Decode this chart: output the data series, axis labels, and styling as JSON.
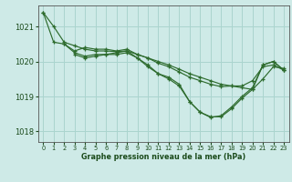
{
  "bg_color": "#ceeae7",
  "grid_color": "#aad4ce",
  "line_color": "#2d6b2d",
  "text_color": "#1a4a1a",
  "xlabel": "Graphe pression niveau de la mer (hPa)",
  "xlim": [
    -0.5,
    23.5
  ],
  "ylim": [
    1017.7,
    1021.6
  ],
  "yticks": [
    1018,
    1019,
    1020,
    1021
  ],
  "xticks": [
    0,
    1,
    2,
    3,
    4,
    5,
    6,
    7,
    8,
    9,
    10,
    11,
    12,
    13,
    14,
    15,
    16,
    17,
    18,
    19,
    20,
    21,
    22,
    23
  ],
  "series": [
    {
      "x": [
        0,
        1,
        2,
        3,
        4,
        5,
        6,
        7,
        8,
        9,
        10,
        11,
        12,
        13,
        14,
        15,
        16,
        17,
        18,
        19,
        20,
        21,
        22,
        23
      ],
      "y": [
        1021.4,
        1021.0,
        1020.55,
        1020.45,
        1020.35,
        1020.3,
        1020.3,
        1020.28,
        1020.3,
        1020.2,
        1020.1,
        1020.0,
        1019.9,
        1019.78,
        1019.65,
        1019.55,
        1019.45,
        1019.35,
        1019.3,
        1019.25,
        1019.2,
        1019.5,
        1019.85,
        1019.8
      ]
    },
    {
      "x": [
        0,
        1,
        2,
        3,
        4,
        5,
        6,
        7,
        8,
        9,
        10,
        11,
        12,
        13,
        14,
        15,
        16,
        17,
        18,
        19,
        20,
        21,
        22,
        23
      ],
      "y": [
        1021.4,
        1020.55,
        1020.5,
        1020.3,
        1020.4,
        1020.35,
        1020.35,
        1020.3,
        1020.35,
        1020.2,
        1020.1,
        1019.95,
        1019.85,
        1019.7,
        1019.55,
        1019.45,
        1019.35,
        1019.28,
        1019.3,
        1019.3,
        1019.45,
        1019.85,
        1019.9,
        1019.75
      ]
    },
    {
      "x": [
        2,
        3,
        4,
        5,
        6,
        7,
        8,
        9,
        10,
        11,
        12,
        13,
        14,
        15,
        16,
        17,
        18,
        19,
        20,
        21,
        22,
        23
      ],
      "y": [
        1020.5,
        1020.25,
        1020.15,
        1020.2,
        1020.2,
        1020.25,
        1020.3,
        1020.1,
        1019.85,
        1019.65,
        1019.55,
        1019.35,
        1018.85,
        1018.55,
        1018.4,
        1018.45,
        1018.7,
        1019.0,
        1019.25,
        1019.9,
        1020.0,
        1019.75
      ]
    },
    {
      "x": [
        3,
        4,
        5,
        6,
        7,
        8,
        9,
        10,
        11,
        12,
        13,
        14,
        15,
        16,
        17,
        18,
        19,
        20,
        21,
        22,
        23
      ],
      "y": [
        1020.2,
        1020.1,
        1020.15,
        1020.2,
        1020.2,
        1020.25,
        1020.1,
        1019.9,
        1019.65,
        1019.5,
        1019.3,
        1018.85,
        1018.55,
        1018.42,
        1018.42,
        1018.65,
        1018.95,
        1019.2,
        1019.9,
        1020.0,
        1019.75
      ]
    }
  ]
}
